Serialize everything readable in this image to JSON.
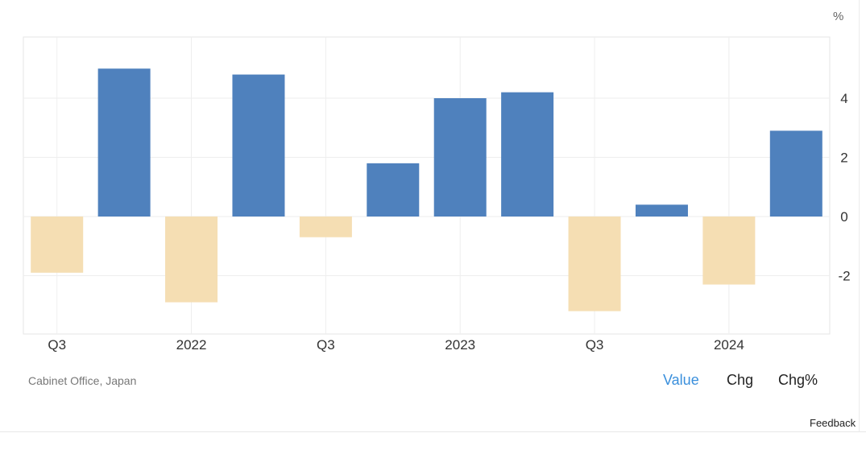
{
  "unit": "%",
  "source": "Cabinet Office, Japan",
  "tabs": [
    {
      "label": "Value",
      "active": true
    },
    {
      "label": "Chg",
      "active": false
    },
    {
      "label": "Chg%",
      "active": false
    }
  ],
  "feedback": "Feedback",
  "colors": {
    "positive": "#4f81bd",
    "negative": "#f5deb3",
    "grid": "#eeeeee",
    "axis_text": "#333333",
    "active_tab": "#3a8fdc"
  },
  "chart_data": {
    "type": "bar",
    "categories": [
      "2021 Q3",
      "2021 Q4",
      "2022 Q1",
      "2022 Q2",
      "2022 Q3",
      "2022 Q4",
      "2023 Q1",
      "2023 Q2",
      "2023 Q3",
      "2023 Q4",
      "2024 Q1",
      "2024 Q2"
    ],
    "values": [
      -1.9,
      5.0,
      -2.9,
      4.8,
      -0.7,
      1.8,
      4.0,
      4.2,
      -3.2,
      0.4,
      -2.3,
      2.9
    ],
    "x_tick_labels": [
      {
        "category": "2021 Q3",
        "label": "Q3"
      },
      {
        "category": "2022 Q1",
        "label": "2022"
      },
      {
        "category": "2022 Q3",
        "label": "Q3"
      },
      {
        "category": "2023 Q1",
        "label": "2023"
      },
      {
        "category": "2023 Q3",
        "label": "Q3"
      },
      {
        "category": "2024 Q1",
        "label": "2024"
      }
    ],
    "y_ticks": [
      4,
      2,
      0,
      -2
    ],
    "ylim": [
      -4,
      6
    ],
    "grid": true,
    "y_axis_position": "right",
    "ylabel": "%"
  }
}
